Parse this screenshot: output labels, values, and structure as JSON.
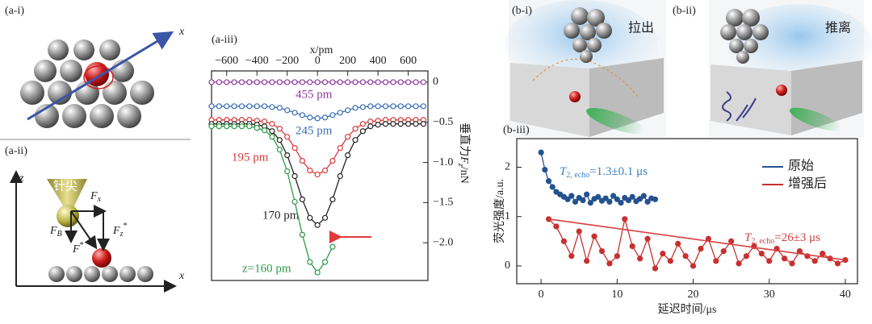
{
  "diagrams": {
    "a_i": {
      "label": "(a-i)",
      "axis_x": "x"
    },
    "a_ii": {
      "label": "(a-ii)",
      "axis_z": "z",
      "axis_x": "x",
      "tip": "针尖",
      "f_x": [
        "F",
        "x"
      ],
      "f_b": [
        "F",
        "B"
      ],
      "f_star": [
        "F",
        "*"
      ],
      "f_z_star": [
        "F",
        "z",
        "*"
      ]
    },
    "b_i": {
      "label": "(b-i)",
      "caption": "拉出"
    },
    "b_ii": {
      "label": "(b-ii)",
      "caption": "推离"
    }
  },
  "chart_data": [
    {
      "type": "line",
      "label": "(a-iii)",
      "xlabel": "x/pm",
      "ylabel": [
        "垂直力",
        "F",
        "z",
        "/nN"
      ],
      "xlim": [
        -700,
        730
      ],
      "ylim": [
        -2.47,
        0.14
      ],
      "xticks": [
        {
          "value": -600,
          "label": "−600"
        },
        {
          "value": -400,
          "label": "−400"
        },
        {
          "value": -200,
          "label": "−200"
        },
        0,
        200,
        400,
        600
      ],
      "yticks": [
        0,
        {
          "value": -0.5,
          "label": "−0.5"
        },
        {
          "value": -1.0,
          "label": "−1.0"
        },
        {
          "value": -1.5,
          "label": "−1.5"
        },
        {
          "value": -2.0,
          "label": "−2.0"
        }
      ],
      "x": [
        -700,
        -650,
        -600,
        -550,
        -500,
        -450,
        -400,
        -350,
        -300,
        -250,
        -200,
        -150,
        -100,
        -50,
        0,
        50,
        100,
        150,
        200,
        250,
        300,
        350,
        400,
        450,
        500,
        550,
        600,
        650,
        700
      ],
      "series": [
        {
          "name": "455 pm",
          "color": "#8e3a9e",
          "marker": "open",
          "values": [
            0,
            0,
            0,
            0,
            0,
            0,
            0,
            0,
            0,
            0,
            0,
            0,
            0,
            0,
            0,
            0,
            0,
            0,
            0,
            0,
            0,
            0,
            0,
            0,
            0,
            0,
            0,
            0,
            0
          ]
        },
        {
          "name": "245 pm",
          "color": "#3a6fb5",
          "marker": "open",
          "values": [
            -0.3,
            -0.3,
            -0.3,
            -0.3,
            -0.3,
            -0.3,
            -0.3,
            -0.3,
            -0.31,
            -0.32,
            -0.35,
            -0.38,
            -0.41,
            -0.44,
            -0.45,
            -0.44,
            -0.41,
            -0.38,
            -0.35,
            -0.32,
            -0.31,
            -0.3,
            -0.3,
            -0.3,
            -0.3,
            -0.3,
            -0.3,
            -0.3,
            -0.3
          ]
        },
        {
          "name": "195 pm",
          "color": "#d93a3a",
          "marker": "open",
          "values": [
            -0.47,
            -0.47,
            -0.47,
            -0.47,
            -0.47,
            -0.47,
            -0.48,
            -0.49,
            -0.52,
            -0.58,
            -0.68,
            -0.82,
            -0.98,
            -1.1,
            -1.15,
            -1.1,
            -0.98,
            -0.82,
            -0.68,
            -0.58,
            -0.52,
            -0.49,
            -0.48,
            -0.47,
            -0.47,
            -0.47,
            -0.47,
            -0.47,
            -0.47
          ]
        },
        {
          "name": "170 pm",
          "color": "#222222",
          "marker": "open",
          "values": [
            -0.52,
            -0.52,
            -0.52,
            -0.52,
            -0.52,
            -0.52,
            -0.53,
            -0.55,
            -0.61,
            -0.72,
            -0.91,
            -1.17,
            -1.46,
            -1.69,
            -1.78,
            -1.69,
            -1.46,
            -1.17,
            -0.91,
            -0.72,
            -0.61,
            -0.55,
            -0.53,
            -0.52,
            -0.52,
            -0.52,
            -0.52,
            -0.52,
            -0.52
          ]
        },
        {
          "name": "z=160 pm",
          "color": "#2e9a48",
          "marker": "open",
          "values": [
            -0.55,
            -0.55,
            -0.55,
            -0.55,
            -0.55,
            -0.55,
            -0.57,
            -0.6,
            -0.68,
            -0.84,
            -1.11,
            -1.49,
            -1.9,
            -2.24,
            -2.37,
            -2.24,
            -2.05,
            null,
            null,
            null,
            null,
            null,
            null,
            null,
            null,
            null,
            null,
            null,
            null
          ]
        }
      ]
    },
    {
      "type": "line",
      "label": "(b-iii)",
      "xlabel": "延迟时间/μs",
      "ylabel": "荧光强度/a.u.",
      "xlim": [
        -3.2,
        41.6
      ],
      "ylim": [
        -0.36,
        2.58
      ],
      "xticks": [
        0,
        10,
        20,
        30,
        40
      ],
      "yticks": [
        0,
        1,
        2
      ],
      "legend": "upper right",
      "annotations": [
        {
          "parts": [
            "T",
            "2, echo",
            "=1.3±0.1 μs"
          ],
          "color": "#3a7fc0"
        },
        {
          "parts": [
            "T",
            "2, echo",
            "=26±3 μs"
          ],
          "color": "#d04040"
        }
      ],
      "series": [
        {
          "name": "原始",
          "color": "#24528f",
          "marker": "filled",
          "x": [
            0,
            0.5,
            1,
            1.5,
            2,
            2.5,
            3,
            3.5,
            4,
            4.5,
            5,
            5.5,
            6,
            6.5,
            7,
            7.5,
            8,
            8.5,
            9,
            9.5,
            10,
            10.5,
            11,
            11.5,
            12,
            12.5,
            13,
            13.5,
            14,
            14.5,
            15
          ],
          "values": [
            2.3,
            1.95,
            1.72,
            1.6,
            1.5,
            1.45,
            1.4,
            1.35,
            1.42,
            1.3,
            1.38,
            1.33,
            1.45,
            1.28,
            1.36,
            1.4,
            1.32,
            1.37,
            1.3,
            1.42,
            1.35,
            1.28,
            1.38,
            1.33,
            1.4,
            1.31,
            1.36,
            1.42,
            1.3,
            1.37,
            1.35
          ]
        },
        {
          "name": "增强后",
          "color": "#c83030",
          "marker": "filled",
          "x": [
            1,
            2,
            3,
            4,
            5,
            6,
            7,
            8,
            9,
            10,
            11,
            12,
            13,
            14,
            15,
            16,
            17,
            18,
            19,
            20,
            21,
            22,
            23,
            24,
            25,
            26,
            27,
            28,
            29,
            30,
            31,
            32,
            33,
            34,
            35,
            36,
            37,
            38,
            39,
            40
          ],
          "values": [
            0.95,
            0.8,
            0.5,
            0.2,
            0.7,
            0.1,
            0.6,
            0.3,
            0.05,
            0.2,
            0.95,
            0.4,
            0.15,
            0.55,
            -0.05,
            0.25,
            0.1,
            0.45,
            0.2,
            0,
            0.35,
            0.55,
            0.1,
            0.3,
            0.5,
            0.05,
            0.2,
            0.4,
            0.25,
            0.1,
            0.35,
            0.15,
            0.05,
            0.3,
            0.2,
            0.1,
            0.25,
            0.15,
            0.05,
            0.12
          ]
        },
        {
          "color": "#d84040",
          "x": [
            1,
            40
          ],
          "values": [
            0.95,
            0.12
          ]
        }
      ]
    }
  ]
}
